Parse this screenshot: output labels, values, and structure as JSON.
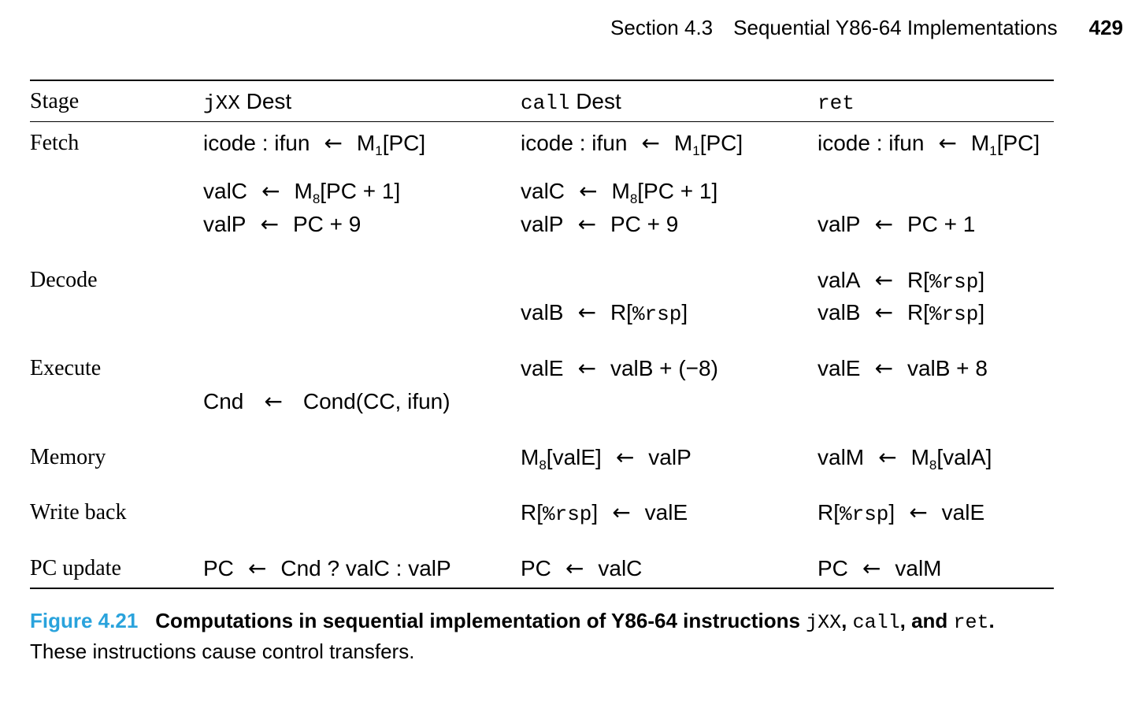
{
  "header": {
    "section": "Section 4.3",
    "title": "Sequential Y86-64 Implementations",
    "page_number": "429"
  },
  "table": {
    "stage_header": "Stage",
    "columns": [
      {
        "code": "jXX",
        "label": " Dest"
      },
      {
        "code": "call",
        "label": " Dest"
      },
      {
        "code": "ret",
        "label": ""
      }
    ],
    "stages": {
      "fetch": "Fetch",
      "decode": "Decode",
      "execute": "Execute",
      "memory": "Memory",
      "write_back": "Write back",
      "pc_update": "PC update"
    },
    "arrow": "←",
    "t": {
      "icode_ifun": "icode : ifun",
      "M1PC_pre": "M",
      "M1PC_sub": "1",
      "M1PC_post": "[PC]",
      "valC": "valC",
      "M8PC1_pre": "M",
      "M8PC1_sub": "8",
      "M8PC1_post": "[PC + 1]",
      "valP": "valP",
      "PC9": "PC + 9",
      "PC1": "PC + 1",
      "valA": "valA",
      "valB": "valB",
      "R_open": "R[",
      "rsp": "%rsp",
      "R_close": "]",
      "valE": "valE",
      "valB_minus8": "valB + (−8)",
      "valB_plus8": "valB + 8",
      "Cnd": "Cnd",
      "cond_cc": "Cond(CC, ifun)",
      "M8_pre": "M",
      "M8_sub": "8",
      "valE_br": "[valE]",
      "valA_br": "[valA]",
      "valM": "valM",
      "PC": "PC",
      "cnd_select": "Cnd ? valC : valP"
    }
  },
  "caption": {
    "figure_number": "Figure 4.21",
    "title_pre": "Computations in sequential implementation of Y86-64 instructions ",
    "code1": "jXX",
    "sep1": ", ",
    "code2": "call",
    "sep2": ", and ",
    "code3": "ret",
    "title_end": ".",
    "body": "These instructions cause control transfers."
  }
}
